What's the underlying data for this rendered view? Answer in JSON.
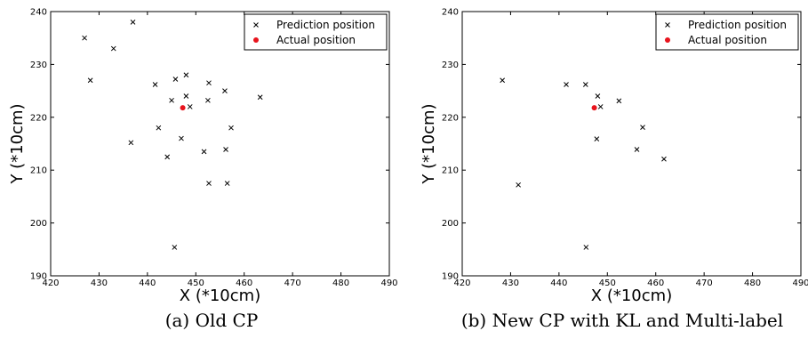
{
  "chart_data": [
    {
      "type": "scatter",
      "caption": "(a) Old CP",
      "xlabel": "X (*10cm)",
      "ylabel": "Y (*10cm)",
      "xlim": [
        420,
        490
      ],
      "ylim": [
        190,
        240
      ],
      "xticks": [
        420,
        430,
        440,
        450,
        460,
        470,
        480,
        490
      ],
      "yticks": [
        190,
        200,
        210,
        220,
        230,
        240
      ],
      "legend_position": "top-right",
      "series": [
        {
          "name": "Prediction position",
          "marker": "x",
          "color": "#000000",
          "points": [
            [
              427,
              235
            ],
            [
              437,
              238
            ],
            [
              433,
              233
            ],
            [
              428.2,
              227
            ],
            [
              441.6,
              226.2
            ],
            [
              445.8,
              227.2
            ],
            [
              448,
              228
            ],
            [
              452.7,
              226.5
            ],
            [
              456,
              225
            ],
            [
              463.3,
              223.8
            ],
            [
              445,
              223.2
            ],
            [
              448,
              224
            ],
            [
              448.8,
              222
            ],
            [
              452.5,
              223.2
            ],
            [
              442.3,
              218
            ],
            [
              457.3,
              218
            ],
            [
              436.6,
              215.2
            ],
            [
              447,
              216
            ],
            [
              451.7,
              213.5
            ],
            [
              456.2,
              213.9
            ],
            [
              444.1,
              212.5
            ],
            [
              452.7,
              207.5
            ],
            [
              456.5,
              207.5
            ],
            [
              445.6,
              195.4
            ]
          ]
        },
        {
          "name": "Actual position",
          "marker": "o",
          "color": "#e8141d",
          "points": [
            [
              447.3,
              221.8
            ]
          ]
        }
      ]
    },
    {
      "type": "scatter",
      "caption": "(b) New CP with KL and Multi-label",
      "xlabel": "X (*10cm)",
      "ylabel": "Y (*10cm)",
      "xlim": [
        420,
        490
      ],
      "ylim": [
        190,
        240
      ],
      "xticks": [
        420,
        430,
        440,
        450,
        460,
        470,
        480,
        490
      ],
      "yticks": [
        190,
        200,
        210,
        220,
        230,
        240
      ],
      "legend_position": "top-right",
      "series": [
        {
          "name": "Prediction position",
          "marker": "x",
          "color": "#000000",
          "points": [
            [
              428.3,
              227
            ],
            [
              441.5,
              226.2
            ],
            [
              445.5,
              226.2
            ],
            [
              448,
              224
            ],
            [
              448.6,
              222
            ],
            [
              452.4,
              223.1
            ],
            [
              447.8,
              215.9
            ],
            [
              457.3,
              218.1
            ],
            [
              456.1,
              213.9
            ],
            [
              461.7,
              212.1
            ],
            [
              431.6,
              207.2
            ],
            [
              445.6,
              195.4
            ]
          ]
        },
        {
          "name": "Actual position",
          "marker": "o",
          "color": "#e8141d",
          "points": [
            [
              447.3,
              221.8
            ]
          ]
        }
      ]
    }
  ]
}
